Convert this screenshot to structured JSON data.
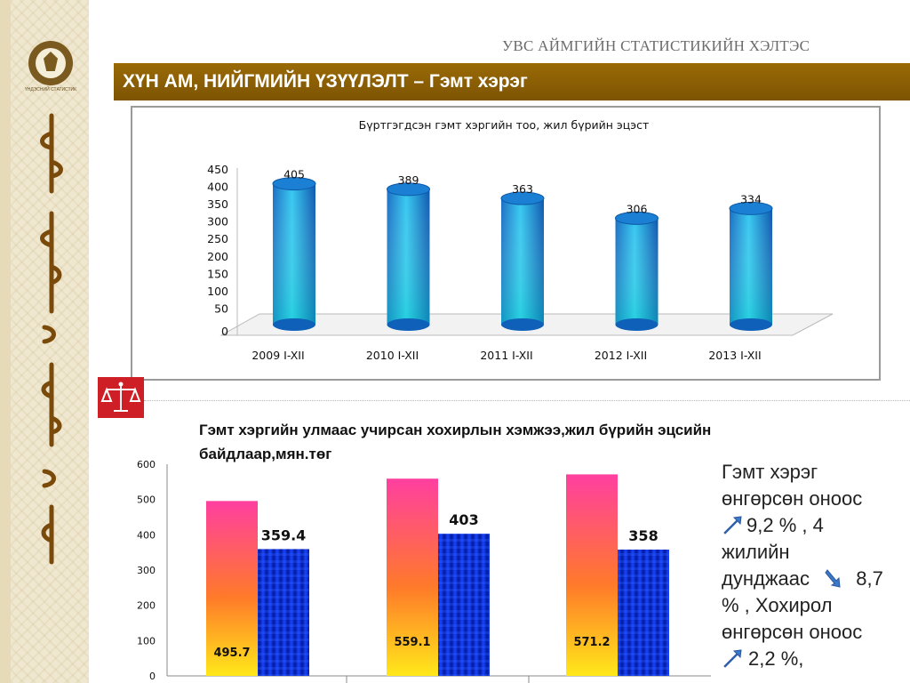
{
  "header": {
    "org_name": "УВС АЙМГИЙН СТАТИСТИКИЙН ХЭЛТЭС",
    "title": "ХҮН АМ, НИЙГМИЙН ҮЗҮҮЛЭЛТ – Гэмт хэрэг",
    "logo_text": "ҮНДЭСНИЙ СТАТИСТИК"
  },
  "chart_data": [
    {
      "type": "bar",
      "title": "Бүртгэгдсэн гэмт хэргийн тоо, жил бүрийн эцэст",
      "categories": [
        "2009 I-XII",
        "2010 I-XII",
        "2011 I-XII",
        "2012 I-XII",
        "2013 I-XII"
      ],
      "values": [
        405,
        389,
        363,
        306,
        334
      ],
      "data_labels": [
        "405",
        "389",
        "363",
        "306",
        "334"
      ],
      "yticks": [
        "0",
        "50",
        "100",
        "150",
        "200",
        "250",
        "300",
        "350",
        "400",
        "450"
      ],
      "ylim": [
        0,
        450
      ],
      "bar_color": "#1aa0d8",
      "grid": false,
      "legend": "none"
    },
    {
      "type": "bar",
      "title": "Гэмт хэргийн улмаас учирсан хохирлын хэмжээ,жил бүрийн эцсийн байдлаар,мян.төг",
      "series": [
        {
          "values": [
            495.7,
            559.1,
            571.2
          ],
          "data_labels": [
            "495.7",
            "559.1",
            "571.2"
          ],
          "color": "#ff3fa0"
        },
        {
          "values": [
            359.4,
            403,
            358
          ],
          "data_labels": [
            "359.4",
            "403",
            "358"
          ],
          "color": "#0a1fd0"
        }
      ],
      "yticks": [
        "0",
        "100",
        "200",
        "300",
        "400",
        "500",
        "600"
      ],
      "ylim": [
        0,
        600
      ],
      "grid": false,
      "legend": "none"
    }
  ],
  "summary": {
    "lines": [
      "Гэмт хэрэг",
      "өнгөрсөн оноос",
      "9,2 % , 4",
      "жилийн",
      "дунджаас",
      "8,7",
      "%  , Хохирол",
      "өнгөрсөн оноос",
      "2,2 %,"
    ],
    "arrow_color": "#3a78c8"
  }
}
